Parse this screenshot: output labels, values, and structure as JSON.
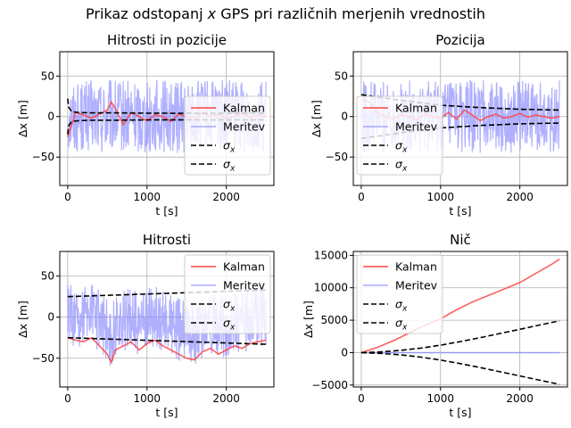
{
  "figure": {
    "suptitle": "Prikaz odstopanj x GPS pri različnih merjenih vrednostih",
    "grid": true,
    "colors": {
      "kalman": "#ff4444",
      "meritev": "#8f8fff",
      "sigma": "#000000",
      "grid": "#b0b0b0"
    }
  },
  "chart_data": [
    {
      "type": "line",
      "title": "Hitrosti in pozicije",
      "xlabel": "t [s]",
      "ylabel": "Δx [m]",
      "xlim": [
        -100,
        2600
      ],
      "ylim": [
        -85,
        80
      ],
      "xticks": [
        0,
        1000,
        2000
      ],
      "yticks": [
        -50,
        0,
        50
      ],
      "legend_position": "right-center",
      "series": [
        {
          "name": "Kalman",
          "kind": "smooth",
          "color": "#ff4444",
          "x": [
            0,
            100,
            200,
            300,
            400,
            500,
            550,
            600,
            700,
            800,
            900,
            1000,
            1100,
            1200,
            1300,
            1400,
            1500,
            1600,
            1700,
            1800,
            1900,
            2000,
            2100,
            2200,
            2300,
            2400,
            2500
          ],
          "y": [
            -25,
            5,
            2,
            -2,
            3,
            8,
            18,
            10,
            -10,
            5,
            0,
            -5,
            2,
            0,
            -6,
            3,
            0,
            -2,
            5,
            0,
            3,
            -2,
            0,
            4,
            -1,
            2,
            0
          ]
        },
        {
          "name": "Meritev",
          "kind": "noise",
          "color": "#8f8fff",
          "x_range": [
            0,
            2500
          ],
          "mean": 0,
          "amplitude": 45
        },
        {
          "name": "σx",
          "kind": "dashed",
          "color": "#000000",
          "x": [
            0,
            10,
            50,
            150,
            300,
            600,
            1000,
            1500,
            2000,
            2500
          ],
          "y": [
            22,
            12,
            6,
            5,
            4.5,
            4.5,
            4.2,
            4,
            4,
            4
          ]
        },
        {
          "name": "σx",
          "kind": "dashed",
          "color": "#000000",
          "x": [
            0,
            10,
            50,
            150,
            300,
            600,
            1000,
            1500,
            2000,
            2500
          ],
          "y": [
            -22,
            -12,
            -6,
            -5,
            -4.5,
            -4.5,
            -4.2,
            -4,
            -4,
            -4
          ]
        }
      ]
    },
    {
      "type": "line",
      "title": "Pozicija",
      "xlabel": "t [s]",
      "ylabel": "Δx [m]",
      "xlim": [
        -100,
        2600
      ],
      "ylim": [
        -85,
        80
      ],
      "xticks": [
        0,
        1000,
        2000
      ],
      "yticks": [
        -50,
        0,
        50
      ],
      "legend_position": "left-center",
      "series": [
        {
          "name": "Kalman",
          "kind": "smooth",
          "color": "#ff4444",
          "x": [
            0,
            100,
            200,
            300,
            400,
            500,
            600,
            700,
            800,
            900,
            1000,
            1100,
            1200,
            1300,
            1400,
            1500,
            1600,
            1700,
            1800,
            1900,
            2000,
            2100,
            2200,
            2300,
            2400,
            2500
          ],
          "y": [
            20,
            18,
            5,
            0,
            -3,
            2,
            0,
            -4,
            3,
            0,
            -2,
            5,
            -3,
            8,
            2,
            -5,
            0,
            3,
            -2,
            0,
            4,
            -1,
            2,
            0,
            -2,
            0
          ]
        },
        {
          "name": "Meritev",
          "kind": "noise",
          "color": "#8f8fff",
          "x_range": [
            0,
            2500
          ],
          "mean": 0,
          "amplitude": 45
        },
        {
          "name": "σx",
          "kind": "dashed",
          "color": "#000000",
          "x": [
            0,
            500,
            1000,
            1500,
            2000,
            2500
          ],
          "y": [
            27,
            20,
            14,
            11,
            9,
            8
          ]
        },
        {
          "name": "σx",
          "kind": "dashed",
          "color": "#000000",
          "x": [
            0,
            500,
            1000,
            1500,
            2000,
            2500
          ],
          "y": [
            -27,
            -20,
            -14,
            -11,
            -9,
            -8
          ]
        }
      ]
    },
    {
      "type": "line",
      "title": "Hitrosti",
      "xlabel": "t [s]",
      "ylabel": "Δx [m]",
      "xlim": [
        -100,
        2600
      ],
      "ylim": [
        -85,
        80
      ],
      "xticks": [
        0,
        1000,
        2000
      ],
      "yticks": [
        -50,
        0,
        50
      ],
      "legend_position": "top-right",
      "series": [
        {
          "name": "Kalman",
          "kind": "smooth",
          "color": "#ff4444",
          "x": [
            0,
            100,
            200,
            300,
            400,
            500,
            550,
            600,
            700,
            800,
            900,
            1000,
            1100,
            1200,
            1300,
            1400,
            1500,
            1600,
            1700,
            1800,
            1900,
            2000,
            2100,
            2200,
            2300,
            2400,
            2500
          ],
          "y": [
            -25,
            -28,
            -30,
            -25,
            -35,
            -45,
            -55,
            -40,
            -35,
            -30,
            -40,
            -32,
            -28,
            -35,
            -40,
            -45,
            -50,
            -52,
            -42,
            -38,
            -45,
            -40,
            -35,
            -38,
            -32,
            -30,
            -28
          ]
        },
        {
          "name": "Meritev",
          "kind": "noise",
          "color": "#8f8fff",
          "x_range": [
            0,
            2500
          ],
          "mean": 0,
          "amplitude": 38
        },
        {
          "name": "σx",
          "kind": "dashed",
          "color": "#000000",
          "x": [
            0,
            2500
          ],
          "y": [
            25,
            33
          ]
        },
        {
          "name": "σx",
          "kind": "dashed",
          "color": "#000000",
          "x": [
            0,
            2500
          ],
          "y": [
            -25,
            -33
          ]
        }
      ]
    },
    {
      "type": "line",
      "title": "Nič",
      "xlabel": "t [s]",
      "ylabel": "Δx [m]",
      "xlim": [
        -100,
        2600
      ],
      "ylim": [
        -5300,
        15600
      ],
      "xticks": [
        0,
        1000,
        2000
      ],
      "yticks": [
        -5000,
        0,
        5000,
        10000,
        15000
      ],
      "legend_position": "top-left",
      "series": [
        {
          "name": "Kalman",
          "kind": "smooth",
          "color": "#ff4444",
          "x": [
            0,
            200,
            400,
            600,
            800,
            1000,
            1200,
            1400,
            1600,
            1800,
            2000,
            2200,
            2400,
            2500
          ],
          "y": [
            0,
            800,
            1800,
            3000,
            4200,
            5200,
            6600,
            7800,
            8800,
            9800,
            10800,
            12200,
            13600,
            14400
          ]
        },
        {
          "name": "Meritev",
          "kind": "smooth",
          "color": "#8f8fff",
          "x": [
            0,
            2500
          ],
          "y": [
            0,
            0
          ]
        },
        {
          "name": "σx",
          "kind": "dashed",
          "color": "#000000",
          "x": [
            0,
            250,
            500,
            750,
            1000,
            1250,
            1500,
            1750,
            2000,
            2250,
            2500
          ],
          "y": [
            0,
            120,
            350,
            700,
            1150,
            1700,
            2300,
            2950,
            3600,
            4250,
            4900
          ]
        },
        {
          "name": "σx",
          "kind": "dashed",
          "color": "#000000",
          "x": [
            0,
            250,
            500,
            750,
            1000,
            1250,
            1500,
            1750,
            2000,
            2250,
            2500
          ],
          "y": [
            0,
            -120,
            -350,
            -700,
            -1150,
            -1700,
            -2300,
            -2950,
            -3600,
            -4250,
            -4900
          ]
        }
      ]
    }
  ]
}
